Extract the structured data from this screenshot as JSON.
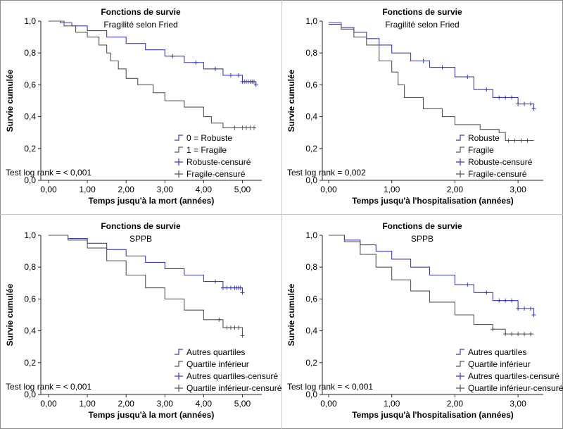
{
  "chart_data": [
    {
      "type": "line",
      "title": "Fonctions de survie",
      "subtitle": "Fragilité selon Fried",
      "xlabel": "Temps jusqu'à la mort (années)",
      "ylabel": "Survie cumulée",
      "xlim": [
        -0.2,
        5.5
      ],
      "ylim": [
        0,
        1.0
      ],
      "xticks": [
        "0,00",
        "1,00",
        "2,00",
        "3,00",
        "4,00",
        "5,00"
      ],
      "xtick_values": [
        0,
        1,
        2,
        3,
        4,
        5
      ],
      "yticks": [
        "0,0",
        "0,2",
        "0,4",
        "0,6",
        "0,8",
        "1,0"
      ],
      "ytick_values": [
        0,
        0.2,
        0.4,
        0.6,
        0.8,
        1.0
      ],
      "legend": [
        "0 = Robuste",
        "1 = Fragile",
        "Robuste-censuré",
        "Fragile-censuré"
      ],
      "annotation": "Test log rank = < 0,001",
      "colors": {
        "series1": "#3b3bb0",
        "series2": "#555555"
      },
      "series": [
        {
          "name": "0 = Robuste",
          "color": "#3b3bb0",
          "x": [
            0,
            0.3,
            0.6,
            1.0,
            1.5,
            2.0,
            2.5,
            3.0,
            3.5,
            4.0,
            4.5,
            5.0,
            5.35
          ],
          "y": [
            1.0,
            0.99,
            0.97,
            0.94,
            0.9,
            0.86,
            0.82,
            0.78,
            0.74,
            0.7,
            0.66,
            0.62,
            0.6
          ],
          "censored_x": [
            3.2,
            3.8,
            4.3,
            4.7,
            4.9,
            5.0,
            5.05,
            5.1,
            5.15,
            5.2,
            5.25,
            5.3,
            5.35
          ]
        },
        {
          "name": "1 = Fragile",
          "color": "#555555",
          "x": [
            0,
            0.4,
            0.7,
            1.0,
            1.3,
            1.5,
            1.6,
            1.8,
            2.0,
            2.3,
            2.7,
            3.0,
            3.5,
            4.0,
            4.2,
            4.5,
            5.35
          ],
          "y": [
            1.0,
            0.97,
            0.93,
            0.9,
            0.85,
            0.8,
            0.75,
            0.7,
            0.64,
            0.6,
            0.55,
            0.5,
            0.46,
            0.4,
            0.36,
            0.33,
            0.33
          ],
          "censored_x": [
            4.8,
            5.0,
            5.1,
            5.2,
            5.3
          ]
        }
      ]
    },
    {
      "type": "line",
      "title": "Fonctions de survie",
      "subtitle": "Fragilité selon Fried",
      "xlabel": "Temps jusqu'à l'hospitalisation (années)",
      "ylabel": "Survie cumulée",
      "xlim": [
        -0.1,
        3.4
      ],
      "ylim": [
        0,
        1.0
      ],
      "xticks": [
        "0,00",
        "1,00",
        "2,00",
        "3,00"
      ],
      "xtick_values": [
        0,
        1,
        2,
        3
      ],
      "yticks": [
        "0,0",
        "0,2",
        "0,4",
        "0,6",
        "0,8",
        "1,0"
      ],
      "ytick_values": [
        0,
        0.2,
        0.4,
        0.6,
        0.8,
        1.0
      ],
      "legend": [
        "Robuste",
        "Fragile",
        "Robuste-censuré",
        "Fragile-censuré"
      ],
      "annotation": "Test log rank = 0,002",
      "colors": {
        "series1": "#3b3bb0",
        "series2": "#555555"
      },
      "series": [
        {
          "name": "Robuste",
          "color": "#3b3bb0",
          "x": [
            0,
            0.2,
            0.4,
            0.6,
            0.8,
            1.0,
            1.3,
            1.6,
            2.0,
            2.3,
            2.6,
            3.0,
            3.25
          ],
          "y": [
            0.99,
            0.96,
            0.93,
            0.89,
            0.85,
            0.8,
            0.75,
            0.71,
            0.65,
            0.57,
            0.52,
            0.48,
            0.45
          ],
          "censored_x": [
            1.5,
            1.8,
            2.2,
            2.5,
            2.7,
            2.8,
            2.9,
            3.0,
            3.1,
            3.2,
            3.25
          ]
        },
        {
          "name": "Fragile",
          "color": "#555555",
          "x": [
            0,
            0.2,
            0.4,
            0.6,
            0.8,
            1.0,
            1.1,
            1.2,
            1.5,
            1.8,
            2.0,
            2.4,
            2.7,
            2.8,
            3.25
          ],
          "y": [
            0.98,
            0.95,
            0.9,
            0.85,
            0.75,
            0.68,
            0.6,
            0.52,
            0.45,
            0.4,
            0.35,
            0.32,
            0.3,
            0.25,
            0.25
          ],
          "censored_x": [
            2.85,
            2.95,
            3.05,
            3.15
          ]
        }
      ]
    },
    {
      "type": "line",
      "title": "Fonctions de survie",
      "subtitle": "SPPB",
      "xlabel": "Temps jusqu'à la mort (années)",
      "ylabel": "Survie cumulée",
      "xlim": [
        -0.2,
        5.5
      ],
      "ylim": [
        0,
        1.0
      ],
      "xticks": [
        "0,00",
        "1,00",
        "2,00",
        "3,00",
        "4,00",
        "5,00"
      ],
      "xtick_values": [
        0,
        1,
        2,
        3,
        4,
        5
      ],
      "yticks": [
        "0,0",
        "0,2",
        "0,4",
        "0,6",
        "0,8",
        "1,0"
      ],
      "ytick_values": [
        0,
        0.2,
        0.4,
        0.6,
        0.8,
        1.0
      ],
      "legend": [
        "Autres quartiles",
        "Quartile inférieur",
        "Autres quartiles-censuré",
        "Quartile inférieur-censuré"
      ],
      "annotation": "Test log rank = < 0,001",
      "colors": {
        "series1": "#3b3bb0",
        "series2": "#555555"
      },
      "series": [
        {
          "name": "Autres quartiles",
          "color": "#3b3bb0",
          "x": [
            0,
            0.5,
            1.0,
            1.5,
            2.0,
            2.5,
            3.0,
            3.5,
            4.0,
            4.5,
            5.0
          ],
          "y": [
            1.0,
            0.98,
            0.95,
            0.91,
            0.87,
            0.83,
            0.79,
            0.75,
            0.71,
            0.67,
            0.64
          ],
          "censored_x": [
            4.3,
            4.5,
            4.6,
            4.7,
            4.8,
            4.85,
            4.9,
            4.95,
            5.0
          ]
        },
        {
          "name": "Quartile inférieur",
          "color": "#555555",
          "x": [
            0,
            0.5,
            1.0,
            1.5,
            2.0,
            2.5,
            3.0,
            3.5,
            4.0,
            4.5,
            5.0
          ],
          "y": [
            1.0,
            0.97,
            0.92,
            0.84,
            0.75,
            0.67,
            0.6,
            0.53,
            0.47,
            0.42,
            0.37
          ],
          "censored_x": [
            4.4,
            4.6,
            4.7,
            4.8,
            4.9,
            5.0
          ]
        }
      ]
    },
    {
      "type": "line",
      "title": "Fonctions de survie",
      "subtitle": "SPPB",
      "xlabel": "Temps jusqu'à l'hospitalisation (années)",
      "ylabel": "Survie cumulée",
      "xlim": [
        -0.1,
        3.4
      ],
      "ylim": [
        0,
        1.0
      ],
      "xticks": [
        "0,00",
        "1,00",
        "2,00",
        "3,00"
      ],
      "xtick_values": [
        0,
        1,
        2,
        3
      ],
      "yticks": [
        "0,0",
        "0,2",
        "0,4",
        "0,6",
        "0,8",
        "1,0"
      ],
      "ytick_values": [
        0,
        0.2,
        0.4,
        0.6,
        0.8,
        1.0
      ],
      "legend": [
        "Autres quartiles",
        "Quartile inférieur",
        "Autres quartiles-censuré",
        "Quartile inférieur-censuré"
      ],
      "annotation": "Test log rank = < 0,001",
      "colors": {
        "series1": "#3b3bb0",
        "series2": "#555555"
      },
      "series": [
        {
          "name": "Autres quartiles",
          "color": "#3b3bb0",
          "x": [
            0,
            0.25,
            0.5,
            0.75,
            1.0,
            1.3,
            1.6,
            2.0,
            2.3,
            2.6,
            3.0,
            3.25
          ],
          "y": [
            1.0,
            0.97,
            0.94,
            0.9,
            0.85,
            0.8,
            0.75,
            0.69,
            0.64,
            0.59,
            0.54,
            0.5
          ],
          "censored_x": [
            2.2,
            2.5,
            2.7,
            2.8,
            2.9,
            3.0,
            3.1,
            3.2,
            3.25
          ]
        },
        {
          "name": "Quartile inférieur",
          "color": "#555555",
          "x": [
            0,
            0.25,
            0.5,
            0.75,
            1.0,
            1.3,
            1.6,
            2.0,
            2.3,
            2.6,
            2.8,
            3.25
          ],
          "y": [
            1.0,
            0.96,
            0.88,
            0.8,
            0.72,
            0.65,
            0.58,
            0.5,
            0.44,
            0.41,
            0.38,
            0.38
          ],
          "censored_x": [
            2.6,
            2.8,
            2.9,
            3.0,
            3.1,
            3.2
          ]
        }
      ]
    }
  ]
}
